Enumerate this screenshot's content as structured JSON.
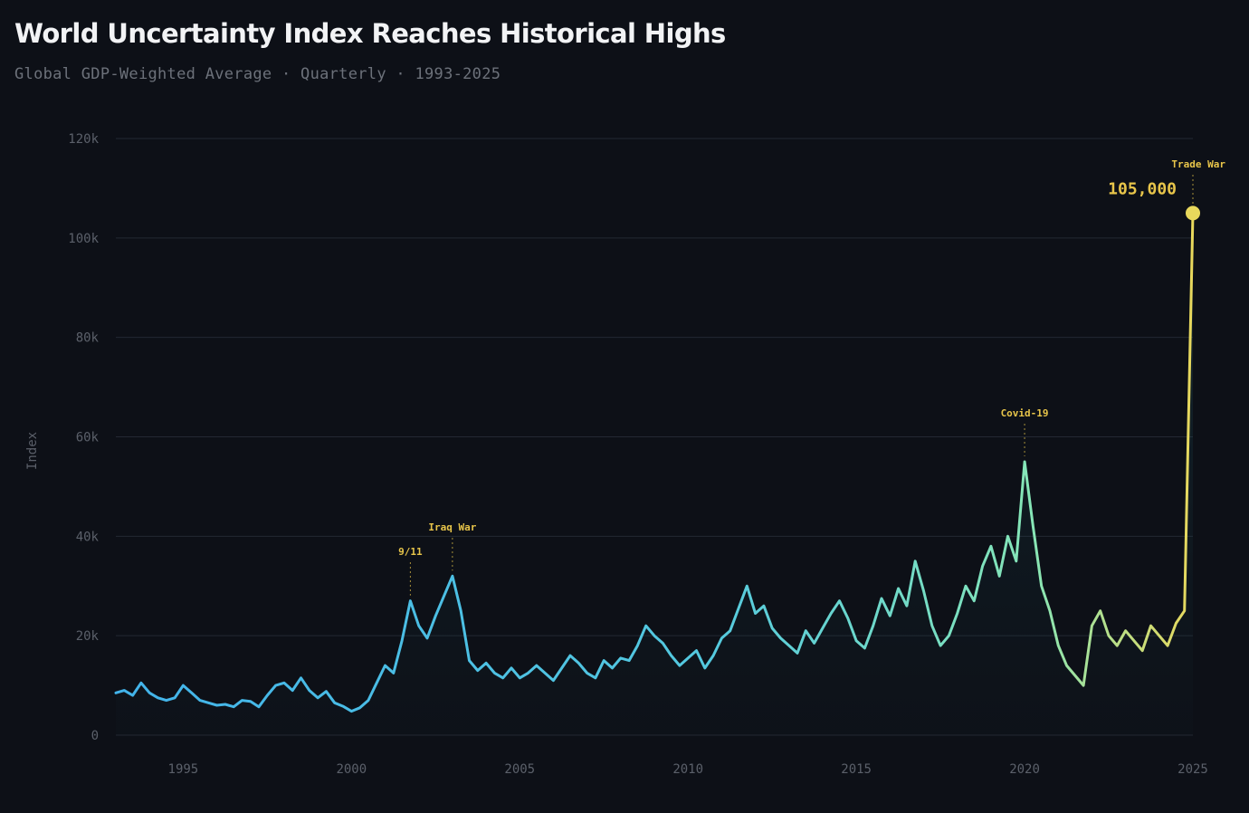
{
  "chart_data": {
    "type": "line",
    "title": "World Uncertainty Index Reaches Historical Highs",
    "subtitle": "Global GDP-Weighted Average · Quarterly · 1993-2025",
    "xlabel": "",
    "ylabel": "Index",
    "xlim": [
      1993,
      2025
    ],
    "ylim": [
      0,
      120000
    ],
    "x_ticks": [
      {
        "value": 1995,
        "label": "1995"
      },
      {
        "value": 2000,
        "label": "2000"
      },
      {
        "value": 2005,
        "label": "2005"
      },
      {
        "value": 2010,
        "label": "2010"
      },
      {
        "value": 2015,
        "label": "2015"
      },
      {
        "value": 2020,
        "label": "2020"
      },
      {
        "value": 2025,
        "label": "2025"
      }
    ],
    "y_ticks": [
      {
        "value": 0,
        "label": "0"
      },
      {
        "value": 20000,
        "label": "20k"
      },
      {
        "value": 40000,
        "label": "40k"
      },
      {
        "value": 60000,
        "label": "60k"
      },
      {
        "value": 80000,
        "label": "80k"
      },
      {
        "value": 100000,
        "label": "100k"
      },
      {
        "value": 120000,
        "label": "120k"
      }
    ],
    "grid": true,
    "colors": {
      "start": "#42b3ea",
      "mid": "#6fe0c6",
      "end": "#e8d85c",
      "annotation": "#e8c54a",
      "grid": "#232833"
    },
    "series": [
      {
        "name": "World Uncertainty Index",
        "x": [
          1993.0,
          1993.25,
          1993.5,
          1993.75,
          1994.0,
          1994.25,
          1994.5,
          1994.75,
          1995.0,
          1995.25,
          1995.5,
          1995.75,
          1996.0,
          1996.25,
          1996.5,
          1996.75,
          1997.0,
          1997.25,
          1997.5,
          1997.75,
          1998.0,
          1998.25,
          1998.5,
          1998.75,
          1999.0,
          1999.25,
          1999.5,
          1999.75,
          2000.0,
          2000.25,
          2000.5,
          2000.75,
          2001.0,
          2001.25,
          2001.5,
          2001.75,
          2002.0,
          2002.25,
          2002.5,
          2002.75,
          2003.0,
          2003.25,
          2003.5,
          2003.75,
          2004.0,
          2004.25,
          2004.5,
          2004.75,
          2005.0,
          2005.25,
          2005.5,
          2005.75,
          2006.0,
          2006.25,
          2006.5,
          2006.75,
          2007.0,
          2007.25,
          2007.5,
          2007.75,
          2008.0,
          2008.25,
          2008.5,
          2008.75,
          2009.0,
          2009.25,
          2009.5,
          2009.75,
          2010.0,
          2010.25,
          2010.5,
          2010.75,
          2011.0,
          2011.25,
          2011.5,
          2011.75,
          2012.0,
          2012.25,
          2012.5,
          2012.75,
          2013.0,
          2013.25,
          2013.5,
          2013.75,
          2014.0,
          2014.25,
          2014.5,
          2014.75,
          2015.0,
          2015.25,
          2015.5,
          2015.75,
          2016.0,
          2016.25,
          2016.5,
          2016.75,
          2017.0,
          2017.25,
          2017.5,
          2017.75,
          2018.0,
          2018.25,
          2018.5,
          2018.75,
          2019.0,
          2019.25,
          2019.5,
          2019.75,
          2020.0,
          2020.25,
          2020.5,
          2020.75,
          2021.0,
          2021.25,
          2021.5,
          2021.75,
          2022.0,
          2022.25,
          2022.5,
          2022.75,
          2023.0,
          2023.25,
          2023.5,
          2023.75,
          2024.0,
          2024.25,
          2024.5,
          2024.75,
          2025.0
        ],
        "y": [
          8500,
          9000,
          8000,
          10500,
          8500,
          7500,
          7000,
          7500,
          10000,
          8500,
          7000,
          6500,
          6000,
          6200,
          5700,
          7000,
          6800,
          5700,
          8000,
          10000,
          10500,
          9000,
          11500,
          9000,
          7500,
          8800,
          6500,
          5800,
          4800,
          5500,
          7000,
          10500,
          14000,
          12500,
          19000,
          27000,
          22000,
          19500,
          24000,
          28000,
          32000,
          25000,
          15000,
          13000,
          14500,
          12500,
          11500,
          13500,
          11500,
          12500,
          14000,
          12500,
          11000,
          13500,
          16000,
          14500,
          12500,
          11500,
          15000,
          13500,
          15500,
          15000,
          18000,
          22000,
          20000,
          18500,
          16000,
          14000,
          15500,
          17000,
          13500,
          16000,
          19500,
          21000,
          25500,
          30000,
          24500,
          26000,
          21500,
          19500,
          18000,
          16500,
          21000,
          18500,
          21500,
          24500,
          27000,
          23500,
          19000,
          17500,
          22000,
          27500,
          24000,
          29500,
          26000,
          35000,
          29000,
          22000,
          18000,
          20000,
          24500,
          30000,
          27000,
          34000,
          38000,
          32000,
          40000,
          35000,
          55000,
          42000,
          30000,
          25000,
          18000,
          14000,
          12000,
          10000,
          22000,
          25000,
          20000,
          18000,
          21000,
          19000,
          17000,
          22000,
          20000,
          18000,
          22500,
          25000,
          105000
        ]
      }
    ],
    "annotations": [
      {
        "label": "9/11",
        "x": 2001.75,
        "y": 27000
      },
      {
        "label": "Iraq War",
        "x": 2003.0,
        "y": 32000
      },
      {
        "label": "Covid-19",
        "x": 2020.0,
        "y": 55000
      },
      {
        "label": "Trade War",
        "x": 2025.0,
        "y": 105000
      }
    ],
    "value_annotation": {
      "label": "105,000",
      "x": 2025.0,
      "y": 105000
    }
  }
}
